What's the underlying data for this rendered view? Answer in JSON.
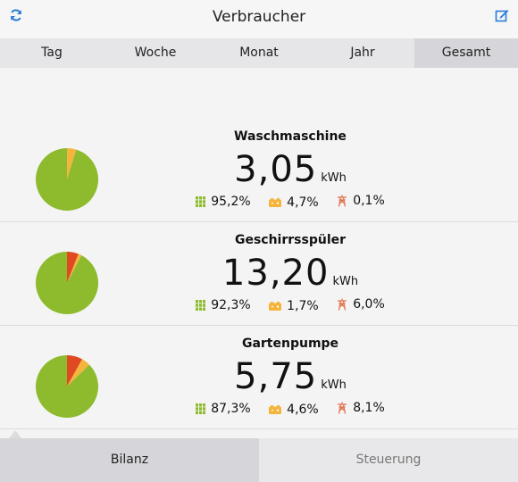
{
  "header": {
    "title": "Verbraucher",
    "refresh_icon": "refresh-icon",
    "edit_icon": "edit-icon"
  },
  "tabs": [
    {
      "label": "Tag",
      "active": false
    },
    {
      "label": "Woche",
      "active": false
    },
    {
      "label": "Monat",
      "active": false
    },
    {
      "label": "Jahr",
      "active": false
    },
    {
      "label": "Gesamt",
      "active": true
    }
  ],
  "colors": {
    "solar": "#8dbb2d",
    "battery": "#f5b43c",
    "grid": "#e04a23"
  },
  "consumers": [
    {
      "name": "Waschmaschine",
      "value": "3,05",
      "unit": "kWh",
      "solar": "95,2%",
      "battery": "4,7%",
      "grid": "0,1%",
      "fractions": {
        "solar": 0.952,
        "battery": 0.047,
        "grid": 0.001
      }
    },
    {
      "name": "Geschirrsspüler",
      "value": "13,20",
      "unit": "kWh",
      "solar": "92,3%",
      "battery": "1,7%",
      "grid": "6,0%",
      "fractions": {
        "solar": 0.923,
        "battery": 0.017,
        "grid": 0.06
      }
    },
    {
      "name": "Gartenpumpe",
      "value": "5,75",
      "unit": "kWh",
      "solar": "87,3%",
      "battery": "4,6%",
      "grid": "8,1%",
      "fractions": {
        "solar": 0.873,
        "battery": 0.046,
        "grid": 0.081
      }
    }
  ],
  "bottom_tabs": [
    {
      "label": "Bilanz",
      "active": true
    },
    {
      "label": "Steuerung",
      "active": false
    }
  ]
}
